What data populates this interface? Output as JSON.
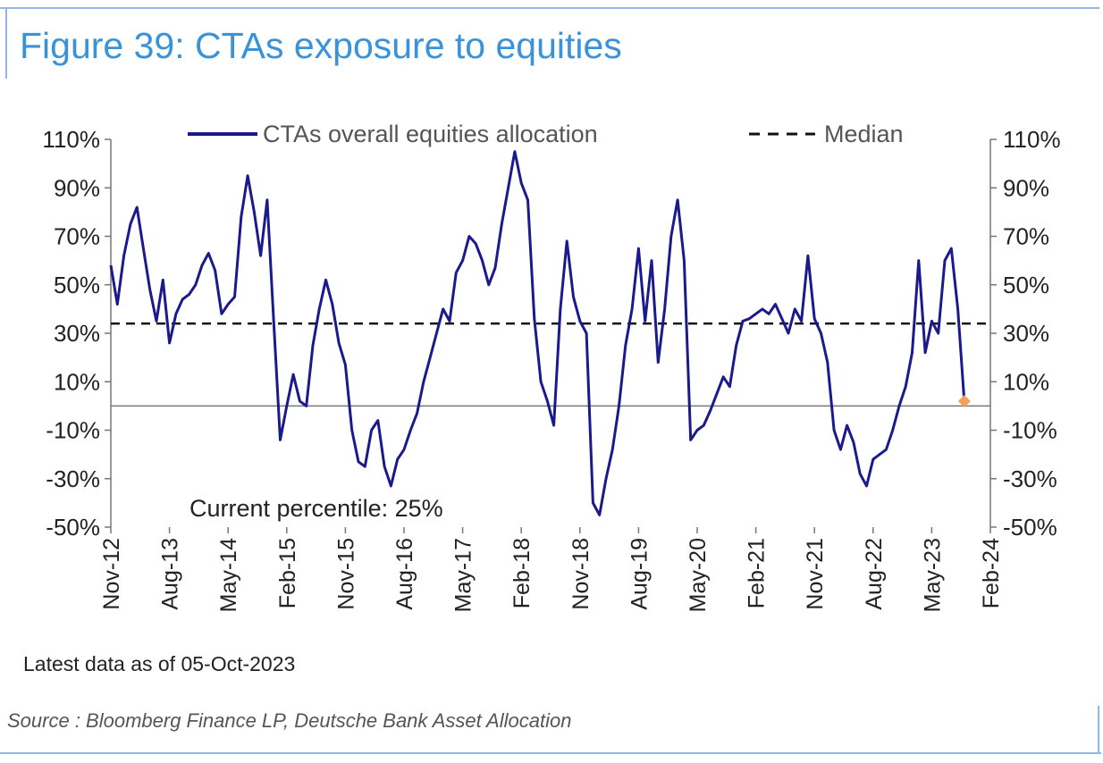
{
  "figure": {
    "title": "Figure 39: CTAs exposure to equities",
    "latest_note": "Latest data as of 05-Oct-2023",
    "source": "Source : Bloomberg Finance LP, Deutsche Bank Asset Allocation"
  },
  "colors": {
    "title": "#3a93d8",
    "series": "#1a1a8c",
    "median": "#111111",
    "marker": "#f2a15a",
    "frame": "#8fb9e3"
  },
  "chart_data": {
    "type": "line",
    "title": "Figure 39: CTAs exposure to equities",
    "xlabel": "",
    "ylabel": "",
    "ylim": [
      -50,
      110
    ],
    "y_ticks": [
      "110%",
      "90%",
      "70%",
      "50%",
      "30%",
      "10%",
      "-10%",
      "-30%",
      "-50%"
    ],
    "y_tick_values": [
      110,
      90,
      70,
      50,
      30,
      10,
      -10,
      -30,
      -50
    ],
    "secondary_y_axis": true,
    "x_ticks": [
      "Nov-12",
      "Aug-13",
      "May-14",
      "Feb-15",
      "Nov-15",
      "Aug-16",
      "May-17",
      "Feb-18",
      "Nov-18",
      "Aug-19",
      "May-20",
      "Feb-21",
      "Nov-21",
      "Aug-22",
      "May-23",
      "Feb-24"
    ],
    "x_range": [
      "2012-11",
      "2024-02"
    ],
    "grid": false,
    "legend": "top",
    "annotation": "Current percentile: 25%",
    "series": [
      {
        "name": "CTAs overall equities allocation",
        "style": "solid",
        "points": [
          [
            "2012-11",
            58
          ],
          [
            "2012-12",
            42
          ],
          [
            "2013-01",
            62
          ],
          [
            "2013-02",
            75
          ],
          [
            "2013-03",
            82
          ],
          [
            "2013-04",
            65
          ],
          [
            "2013-05",
            48
          ],
          [
            "2013-06",
            35
          ],
          [
            "2013-07",
            52
          ],
          [
            "2013-08",
            26
          ],
          [
            "2013-09",
            38
          ],
          [
            "2013-10",
            44
          ],
          [
            "2013-11",
            46
          ],
          [
            "2013-12",
            50
          ],
          [
            "2014-01",
            58
          ],
          [
            "2014-02",
            63
          ],
          [
            "2014-03",
            56
          ],
          [
            "2014-04",
            38
          ],
          [
            "2014-05",
            42
          ],
          [
            "2014-06",
            45
          ],
          [
            "2014-07",
            78
          ],
          [
            "2014-08",
            95
          ],
          [
            "2014-09",
            80
          ],
          [
            "2014-10",
            62
          ],
          [
            "2014-11",
            85
          ],
          [
            "2014-12",
            35
          ],
          [
            "2015-01",
            -14
          ],
          [
            "2015-02",
            0
          ],
          [
            "2015-03",
            13
          ],
          [
            "2015-04",
            2
          ],
          [
            "2015-05",
            0
          ],
          [
            "2015-06",
            25
          ],
          [
            "2015-07",
            40
          ],
          [
            "2015-08",
            52
          ],
          [
            "2015-09",
            42
          ],
          [
            "2015-10",
            26
          ],
          [
            "2015-11",
            17
          ],
          [
            "2015-12",
            -10
          ],
          [
            "2016-01",
            -23
          ],
          [
            "2016-02",
            -25
          ],
          [
            "2016-03",
            -10
          ],
          [
            "2016-04",
            -6
          ],
          [
            "2016-05",
            -25
          ],
          [
            "2016-06",
            -33
          ],
          [
            "2016-07",
            -22
          ],
          [
            "2016-08",
            -18
          ],
          [
            "2016-09",
            -10
          ],
          [
            "2016-10",
            -3
          ],
          [
            "2016-11",
            10
          ],
          [
            "2016-12",
            20
          ],
          [
            "2017-01",
            30
          ],
          [
            "2017-02",
            40
          ],
          [
            "2017-03",
            35
          ],
          [
            "2017-04",
            55
          ],
          [
            "2017-05",
            60
          ],
          [
            "2017-06",
            70
          ],
          [
            "2017-07",
            67
          ],
          [
            "2017-08",
            60
          ],
          [
            "2017-09",
            50
          ],
          [
            "2017-10",
            57
          ],
          [
            "2017-11",
            75
          ],
          [
            "2017-12",
            90
          ],
          [
            "2018-01",
            105
          ],
          [
            "2018-02",
            92
          ],
          [
            "2018-03",
            85
          ],
          [
            "2018-04",
            36
          ],
          [
            "2018-05",
            10
          ],
          [
            "2018-06",
            2
          ],
          [
            "2018-07",
            -8
          ],
          [
            "2018-08",
            40
          ],
          [
            "2018-09",
            68
          ],
          [
            "2018-10",
            45
          ],
          [
            "2018-11",
            35
          ],
          [
            "2018-12",
            30
          ],
          [
            "2019-01",
            -40
          ],
          [
            "2019-02",
            -45
          ],
          [
            "2019-03",
            -30
          ],
          [
            "2019-04",
            -18
          ],
          [
            "2019-05",
            0
          ],
          [
            "2019-06",
            25
          ],
          [
            "2019-07",
            40
          ],
          [
            "2019-08",
            65
          ],
          [
            "2019-09",
            35
          ],
          [
            "2019-10",
            60
          ],
          [
            "2019-11",
            18
          ],
          [
            "2019-12",
            40
          ],
          [
            "2020-01",
            70
          ],
          [
            "2020-02",
            85
          ],
          [
            "2020-03",
            60
          ],
          [
            "2020-04",
            -14
          ],
          [
            "2020-05",
            -10
          ],
          [
            "2020-06",
            -8
          ],
          [
            "2020-07",
            -2
          ],
          [
            "2020-08",
            5
          ],
          [
            "2020-09",
            12
          ],
          [
            "2020-10",
            8
          ],
          [
            "2020-11",
            25
          ],
          [
            "2020-12",
            35
          ],
          [
            "2021-01",
            36
          ],
          [
            "2021-02",
            38
          ],
          [
            "2021-03",
            40
          ],
          [
            "2021-04",
            38
          ],
          [
            "2021-05",
            42
          ],
          [
            "2021-06",
            36
          ],
          [
            "2021-07",
            30
          ],
          [
            "2021-08",
            40
          ],
          [
            "2021-09",
            35
          ],
          [
            "2021-10",
            62
          ],
          [
            "2021-11",
            36
          ],
          [
            "2021-12",
            30
          ],
          [
            "2022-01",
            18
          ],
          [
            "2022-02",
            -10
          ],
          [
            "2022-03",
            -18
          ],
          [
            "2022-04",
            -8
          ],
          [
            "2022-05",
            -15
          ],
          [
            "2022-06",
            -28
          ],
          [
            "2022-07",
            -33
          ],
          [
            "2022-08",
            -22
          ],
          [
            "2022-09",
            -20
          ],
          [
            "2022-10",
            -18
          ],
          [
            "2022-11",
            -10
          ],
          [
            "2022-12",
            0
          ],
          [
            "2023-01",
            8
          ],
          [
            "2023-02",
            22
          ],
          [
            "2023-03",
            60
          ],
          [
            "2023-04",
            22
          ],
          [
            "2023-05",
            35
          ],
          [
            "2023-06",
            30
          ],
          [
            "2023-07",
            60
          ],
          [
            "2023-08",
            65
          ],
          [
            "2023-09",
            40
          ],
          [
            "2023-10",
            2
          ]
        ]
      },
      {
        "name": "Median",
        "style": "dashed",
        "value": 34
      }
    ],
    "current_point": [
      "2023-10",
      2
    ]
  }
}
